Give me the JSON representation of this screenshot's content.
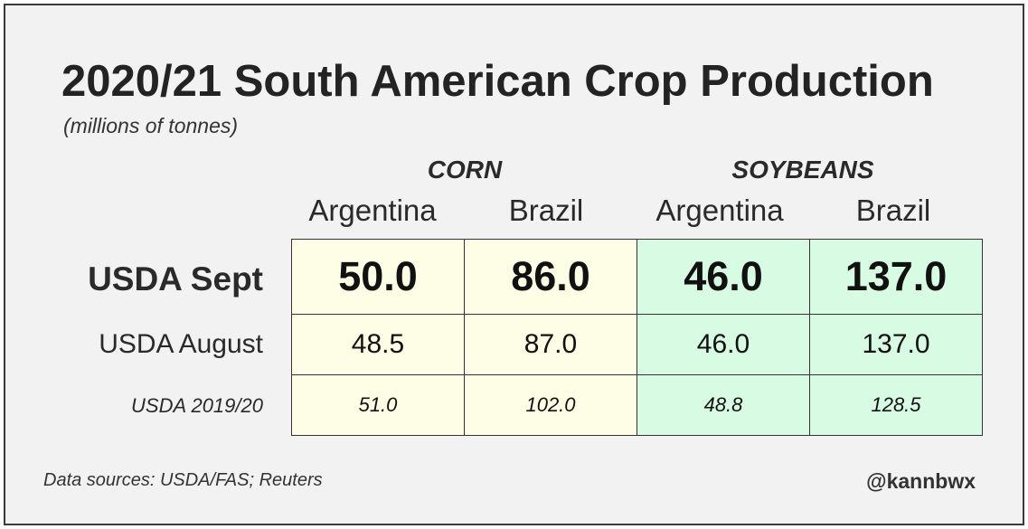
{
  "chart_data": {
    "type": "table",
    "title": "2020/21 South American Crop Production",
    "subtitle": "(millions of tonnes)",
    "groups": [
      {
        "name": "CORN",
        "columns": [
          "Argentina",
          "Brazil"
        ]
      },
      {
        "name": "SOYBEANS",
        "columns": [
          "Argentina",
          "Brazil"
        ]
      }
    ],
    "rows": [
      {
        "label": "USDA Sept",
        "values": [
          "50.0",
          "86.0",
          "46.0",
          "137.0"
        ]
      },
      {
        "label": "USDA August",
        "values": [
          "48.5",
          "87.0",
          "46.0",
          "137.0"
        ]
      },
      {
        "label": "USDA 2019/20",
        "values": [
          "51.0",
          "102.0",
          "48.8",
          "128.5"
        ]
      }
    ],
    "colors": {
      "corn": "#fefee6",
      "soybeans": "#d8fbe3"
    }
  },
  "footer": {
    "source": "Data sources: USDA/FAS; Reuters",
    "handle": "@kannbwx"
  }
}
